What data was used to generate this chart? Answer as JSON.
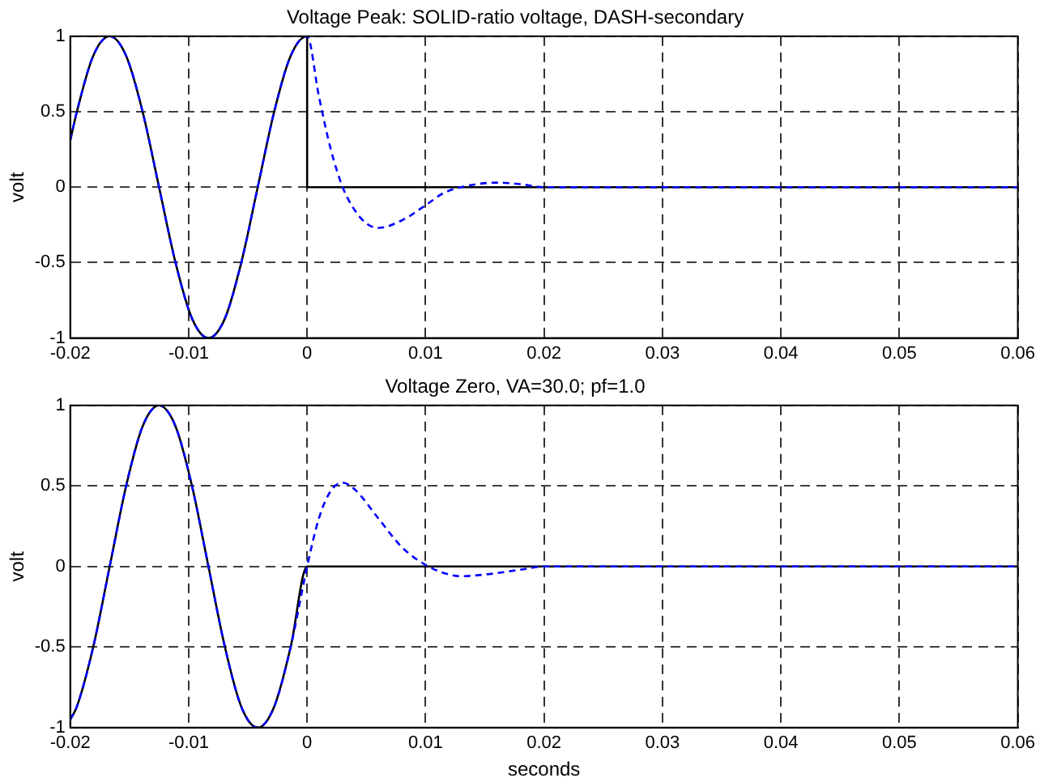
{
  "chart_data": [
    {
      "type": "line",
      "title": "Voltage Peak: SOLID-ratio voltage, DASH-secondary",
      "ylabel": "volt",
      "xlim": [
        -0.02,
        0.06
      ],
      "xticks": [
        -0.02,
        -0.01,
        0,
        0.01,
        0.02,
        0.03,
        0.04,
        0.05,
        0.06
      ],
      "ylim": [
        -1,
        1
      ],
      "yticks": [
        -1,
        -0.5,
        0,
        0.5,
        1
      ],
      "grid": true,
      "legend": false,
      "marker": "none",
      "series": [
        {
          "color": "#000000",
          "line_style": "solid",
          "x": [
            -0.02,
            -0.01944,
            -0.01806,
            -0.01667,
            -0.01528,
            -0.01389,
            -0.0125,
            -0.01111,
            -0.00972,
            -0.00833,
            -0.00694,
            -0.00556,
            -0.00417,
            -0.00278,
            -0.00139,
            0,
            0,
            0.06
          ],
          "values": [
            0.31,
            0.5,
            0.87,
            1,
            0.87,
            0.5,
            0,
            -0.5,
            -0.87,
            -1,
            -0.87,
            -0.5,
            0,
            0.5,
            0.87,
            1,
            0,
            0
          ]
        },
        {
          "color": "#0000ff",
          "line_style": "dashed",
          "x": [
            -0.02,
            -0.01944,
            -0.01806,
            -0.01667,
            -0.01528,
            -0.01389,
            -0.0125,
            -0.01111,
            -0.00972,
            -0.00833,
            -0.00694,
            -0.00556,
            -0.00417,
            -0.00278,
            -0.00139,
            0,
            0.001,
            0.002,
            0.003,
            0.004,
            0.005,
            0.006,
            0.008,
            0.01,
            0.0115,
            0.013,
            0.016,
            0.018,
            0.02,
            0.06
          ],
          "values": [
            0.31,
            0.5,
            0.87,
            1,
            0.87,
            0.5,
            0,
            -0.5,
            -0.87,
            -1,
            -0.87,
            -0.5,
            0,
            0.5,
            0.87,
            1,
            0.6,
            0.25,
            0,
            -0.15,
            -0.24,
            -0.27,
            -0.22,
            -0.12,
            -0.04,
            0,
            0.03,
            0.02,
            0,
            0
          ]
        }
      ]
    },
    {
      "type": "line",
      "title": "Voltage Zero, VA=30.0; pf=1.0",
      "xlabel": "seconds",
      "ylabel": "volt",
      "xlim": [
        -0.02,
        0.06
      ],
      "xticks": [
        -0.02,
        -0.01,
        0,
        0.01,
        0.02,
        0.03,
        0.04,
        0.05,
        0.06
      ],
      "ylim": [
        -1,
        1
      ],
      "yticks": [
        -1,
        -0.5,
        0,
        0.5,
        1
      ],
      "grid": true,
      "legend": false,
      "marker": "none",
      "series": [
        {
          "color": "#000000",
          "line_style": "solid",
          "x": [
            -0.02,
            -0.01944,
            -0.01806,
            -0.01667,
            -0.01528,
            -0.01389,
            -0.0125,
            -0.01111,
            -0.00972,
            -0.00833,
            -0.00694,
            -0.00556,
            -0.00417,
            -0.00278,
            -0.00139,
            0,
            0.06
          ],
          "values": [
            -0.95,
            -0.87,
            -0.5,
            0,
            0.5,
            0.87,
            1,
            0.87,
            0.5,
            0,
            -0.5,
            -0.87,
            -1,
            -0.87,
            -0.5,
            0,
            0
          ]
        },
        {
          "color": "#0000ff",
          "line_style": "dashed",
          "x": [
            -0.02,
            -0.01944,
            -0.01806,
            -0.01667,
            -0.01528,
            -0.01389,
            -0.0125,
            -0.01111,
            -0.00972,
            -0.00833,
            -0.00694,
            -0.00556,
            -0.00417,
            -0.00278,
            -0.00139,
            0,
            0.001,
            0.002,
            0.003,
            0.004,
            0.006,
            0.008,
            0.01,
            0.012,
            0.013,
            0.015,
            0.018,
            0.02,
            0.06
          ],
          "values": [
            -0.95,
            -0.87,
            -0.5,
            0,
            0.5,
            0.87,
            1,
            0.87,
            0.5,
            0,
            -0.5,
            -0.87,
            -1,
            -0.87,
            -0.5,
            0,
            0.3,
            0.47,
            0.52,
            0.48,
            0.3,
            0.12,
            0.01,
            -0.05,
            -0.06,
            -0.05,
            -0.02,
            0,
            0
          ]
        }
      ]
    }
  ]
}
